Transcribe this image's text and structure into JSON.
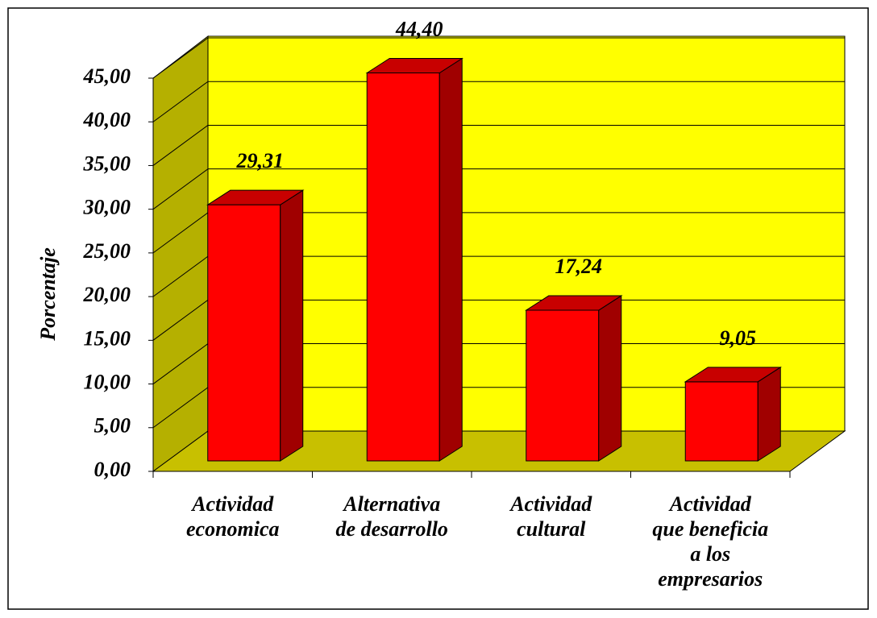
{
  "chart_data": {
    "type": "bar3d",
    "y_label": "Porcentaje",
    "categories": [
      "Actividad\neconomica",
      "Alternativa\nde desarrollo",
      "Actividad\ncultural",
      "Actividad\nque beneficia\na los\nempresarios"
    ],
    "values": [
      29.31,
      44.4,
      17.24,
      9.05
    ],
    "value_labels": [
      "29,31",
      "44,40",
      "17,24",
      "9,05"
    ],
    "color": "#ff0000",
    "ylim": [
      0,
      45
    ],
    "yticks": [
      {
        "value": 0,
        "label": "0,00"
      },
      {
        "value": 5,
        "label": "5,00"
      },
      {
        "value": 10,
        "label": "10,00"
      },
      {
        "value": 15,
        "label": "15,00"
      },
      {
        "value": 20,
        "label": "20,00"
      },
      {
        "value": 25,
        "label": "25,00"
      },
      {
        "value": 30,
        "label": "30,00"
      },
      {
        "value": 35,
        "label": "35,00"
      },
      {
        "value": 40,
        "label": "40,00"
      },
      {
        "value": 45,
        "label": "45,00"
      }
    ],
    "grid": true
  }
}
